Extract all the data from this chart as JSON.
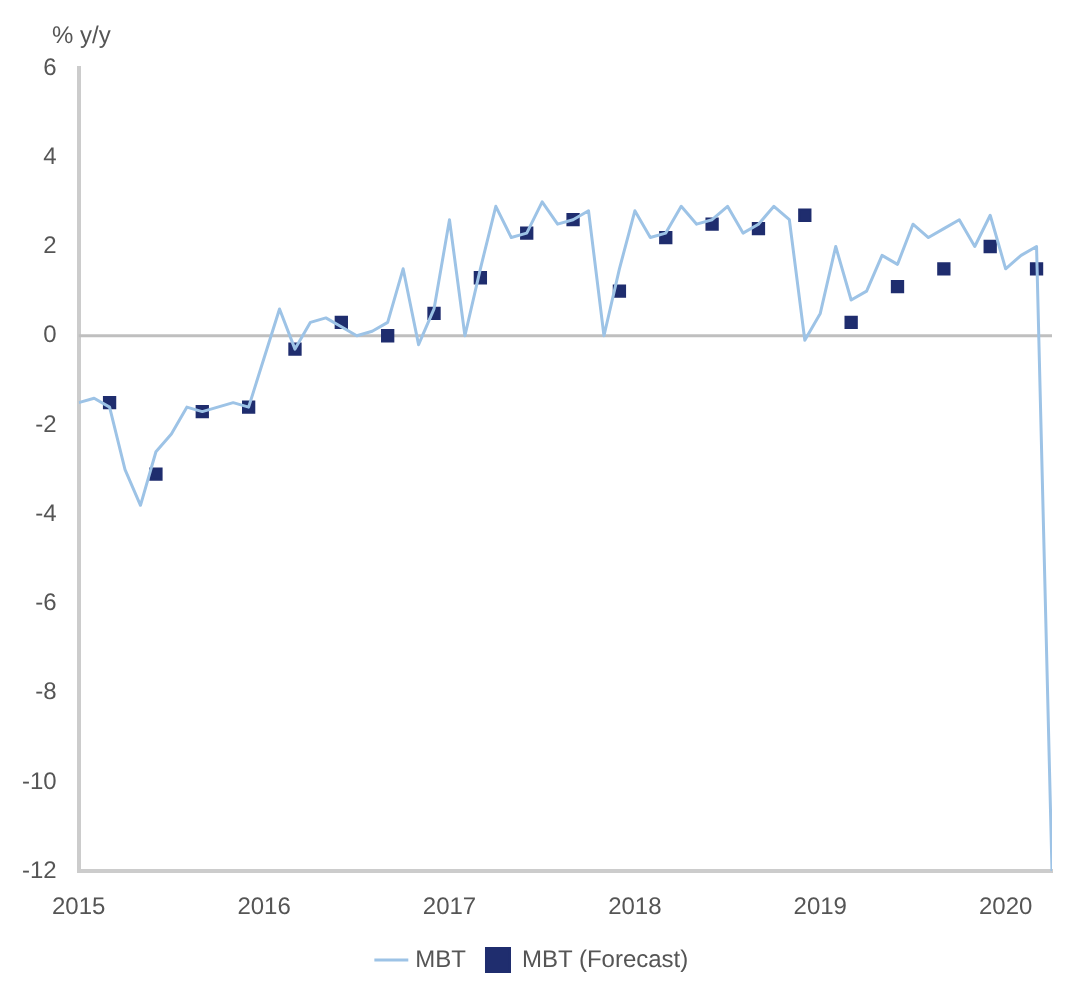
{
  "chart_data": {
    "type": "line",
    "ylabel": "% y/y",
    "xlim": [
      "2015-01",
      "2020-04"
    ],
    "xticks": [
      "2015",
      "2016",
      "2017",
      "2018",
      "2019",
      "2020"
    ],
    "ylim": [
      -12,
      6
    ],
    "yticks": [
      -12,
      -10,
      -8,
      -6,
      -4,
      -2,
      0,
      2,
      4,
      6
    ],
    "grid": false,
    "legend": "bottom",
    "ref_lines": [
      {
        "axis": "y",
        "value": 0,
        "color": "#bfbfbf"
      }
    ],
    "series": [
      {
        "name": "MBT",
        "color": "#9dc3e6",
        "marker": "none",
        "line_style": "solid",
        "x": [
          "2015-01",
          "2015-02",
          "2015-03",
          "2015-04",
          "2015-05",
          "2015-06",
          "2015-07",
          "2015-08",
          "2015-09",
          "2015-10",
          "2015-11",
          "2015-12",
          "2016-01",
          "2016-02",
          "2016-03",
          "2016-04",
          "2016-05",
          "2016-06",
          "2016-07",
          "2016-08",
          "2016-09",
          "2016-10",
          "2016-11",
          "2016-12",
          "2017-01",
          "2017-02",
          "2017-03",
          "2017-04",
          "2017-05",
          "2017-06",
          "2017-07",
          "2017-08",
          "2017-09",
          "2017-10",
          "2017-11",
          "2017-12",
          "2018-01",
          "2018-02",
          "2018-03",
          "2018-04",
          "2018-05",
          "2018-06",
          "2018-07",
          "2018-08",
          "2018-09",
          "2018-10",
          "2018-11",
          "2018-12",
          "2019-01",
          "2019-02",
          "2019-03",
          "2019-04",
          "2019-05",
          "2019-06",
          "2019-07",
          "2019-08",
          "2019-09",
          "2019-10",
          "2019-11",
          "2019-12",
          "2020-01",
          "2020-02",
          "2020-03",
          "2020-04"
        ],
        "values": [
          -1.5,
          -1.4,
          -1.6,
          -3.0,
          -3.8,
          -2.6,
          -2.2,
          -1.6,
          -1.7,
          -1.6,
          -1.5,
          -1.6,
          -0.5,
          0.6,
          -0.3,
          0.3,
          0.4,
          0.2,
          0,
          0.1,
          0.3,
          1.5,
          -0.2,
          0.6,
          2.6,
          0,
          1.5,
          2.9,
          2.2,
          2.3,
          3.0,
          2.5,
          2.6,
          2.8,
          0,
          1.5,
          2.8,
          2.2,
          2.3,
          2.9,
          2.5,
          2.6,
          2.9,
          2.3,
          2.5,
          2.9,
          2.6,
          -0.1,
          0.5,
          2.0,
          0.8,
          1.0,
          1.8,
          1.6,
          2.5,
          2.2,
          2.4,
          2.6,
          2.0,
          2.7,
          1.5,
          1.8,
          2.0,
          -12
        ]
      },
      {
        "name": "MBT (Forecast)",
        "type": "scatter",
        "color": "#1f2d6e",
        "marker": "square",
        "x": [
          "2015-03",
          "2015-06",
          "2015-09",
          "2015-12",
          "2016-03",
          "2016-06",
          "2016-09",
          "2016-12",
          "2017-03",
          "2017-06",
          "2017-09",
          "2017-12",
          "2018-03",
          "2018-06",
          "2018-09",
          "2018-12",
          "2019-03",
          "2019-06",
          "2019-09",
          "2019-12",
          "2020-03"
        ],
        "values": [
          -1.5,
          -3.1,
          -1.7,
          -1.6,
          -0.3,
          0.3,
          0,
          0.5,
          1.3,
          2.3,
          2.6,
          1.0,
          2.2,
          2.5,
          2.4,
          2.7,
          0.3,
          1.1,
          1.5,
          2.0,
          1.5
        ]
      }
    ]
  }
}
